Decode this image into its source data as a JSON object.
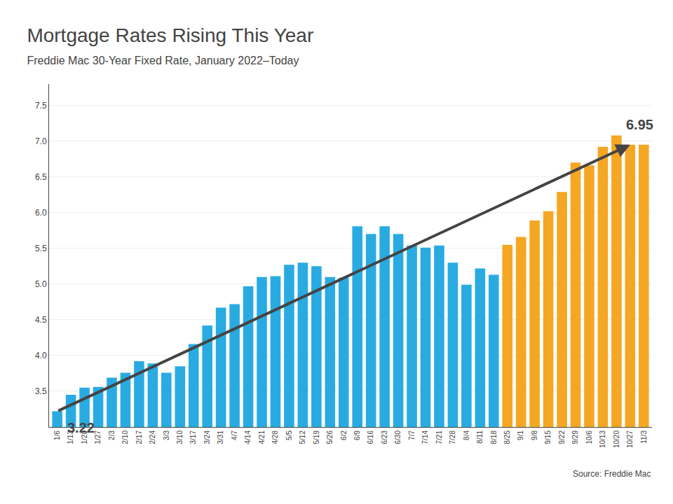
{
  "chart_data": {
    "type": "bar",
    "title": "Mortgage Rates Rising This Year",
    "subtitle": "Freddie Mac 30-Year Fixed Rate, January 2022–Today",
    "source": "Source: Freddie Mac",
    "categories": [
      "1/6",
      "1/13",
      "1/20",
      "1/27",
      "2/3",
      "2/10",
      "2/17",
      "2/24",
      "3/3",
      "3/10",
      "3/17",
      "3/24",
      "3/31",
      "4/7",
      "4/14",
      "4/21",
      "4/28",
      "5/5",
      "5/12",
      "5/19",
      "5/26",
      "6/2",
      "6/9",
      "6/16",
      "6/23",
      "6/30",
      "7/7",
      "7/14",
      "7/21",
      "7/28",
      "8/4",
      "8/11",
      "8/18",
      "8/25",
      "9/1",
      "9/8",
      "9/15",
      "9/22",
      "9/29",
      "10/6",
      "10/13",
      "10/20",
      "10/27",
      "11/3"
    ],
    "values": [
      3.22,
      3.45,
      3.55,
      3.56,
      3.69,
      3.76,
      3.92,
      3.89,
      3.76,
      3.85,
      4.16,
      4.42,
      4.67,
      4.72,
      4.97,
      5.1,
      5.11,
      5.27,
      5.3,
      5.25,
      5.1,
      5.09,
      5.81,
      5.7,
      5.81,
      5.7,
      5.54,
      5.51,
      5.54,
      5.3,
      4.99,
      5.22,
      5.13,
      5.55,
      5.66,
      5.89,
      6.02,
      6.29,
      6.7,
      6.66,
      6.92,
      7.08,
      6.95,
      6.95
    ],
    "colors": [
      "#29abe2",
      "#29abe2",
      "#29abe2",
      "#29abe2",
      "#29abe2",
      "#29abe2",
      "#29abe2",
      "#29abe2",
      "#29abe2",
      "#29abe2",
      "#29abe2",
      "#29abe2",
      "#29abe2",
      "#29abe2",
      "#29abe2",
      "#29abe2",
      "#29abe2",
      "#29abe2",
      "#29abe2",
      "#29abe2",
      "#29abe2",
      "#29abe2",
      "#29abe2",
      "#29abe2",
      "#29abe2",
      "#29abe2",
      "#29abe2",
      "#29abe2",
      "#29abe2",
      "#29abe2",
      "#29abe2",
      "#29abe2",
      "#29abe2",
      "#f5a623",
      "#f5a623",
      "#f5a623",
      "#f5a623",
      "#f5a623",
      "#f5a623",
      "#f5a623",
      "#f5a623",
      "#f5a623",
      "#f5a623",
      "#f5a623"
    ],
    "ylim": [
      3.0,
      7.8
    ],
    "yticks": [
      3.5,
      {
        "value": 4.0,
        "label": "4.0"
      },
      4.5,
      {
        "value": 5.0,
        "label": "5.0"
      },
      5.5,
      {
        "value": 6.0,
        "label": "6.0"
      },
      6.5,
      {
        "value": 7.0,
        "label": "7.0"
      },
      7.5
    ],
    "grid": true,
    "annotations": [
      {
        "text": "3.22",
        "x": "1/6",
        "y": 3.22
      },
      {
        "text": "6.95",
        "x": "10/27",
        "y": 6.95
      }
    ]
  }
}
